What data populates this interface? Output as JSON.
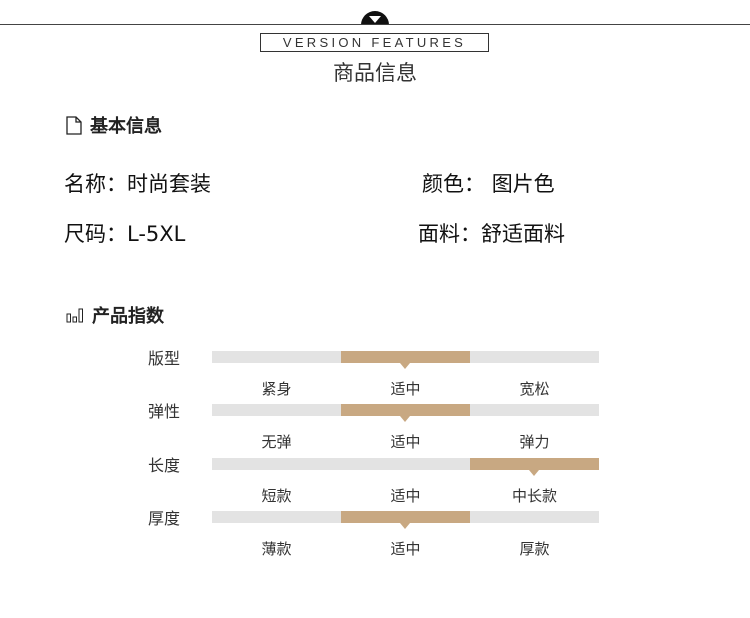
{
  "header": {
    "subtitle_en": "VERSION FEATURES",
    "title": "商品信息",
    "badge_icon": "chevron-down-icon"
  },
  "basic": {
    "heading": "基本信息",
    "icon": "document-icon",
    "fields": [
      {
        "label": "名称：",
        "value": "时尚套装"
      },
      {
        "label": "颜色：",
        "value": "图片色"
      },
      {
        "label": "尺码：",
        "value": "L-5XL"
      },
      {
        "label": "面料：",
        "value": "舒适面料"
      }
    ]
  },
  "index": {
    "heading": "产品指数",
    "icon": "bar-chart-icon",
    "accent": "#c8a882",
    "track": "#e3e3e3",
    "rows": [
      {
        "label": "版型",
        "options": [
          "紧身",
          "适中",
          "宽松"
        ],
        "selected": 1
      },
      {
        "label": "弹性",
        "options": [
          "无弹",
          "适中",
          "弹力"
        ],
        "selected": 1
      },
      {
        "label": "长度",
        "options": [
          "短款",
          "适中",
          "中长款"
        ],
        "selected": 2
      },
      {
        "label": "厚度",
        "options": [
          "薄款",
          "适中",
          "厚款"
        ],
        "selected": 1
      }
    ]
  }
}
